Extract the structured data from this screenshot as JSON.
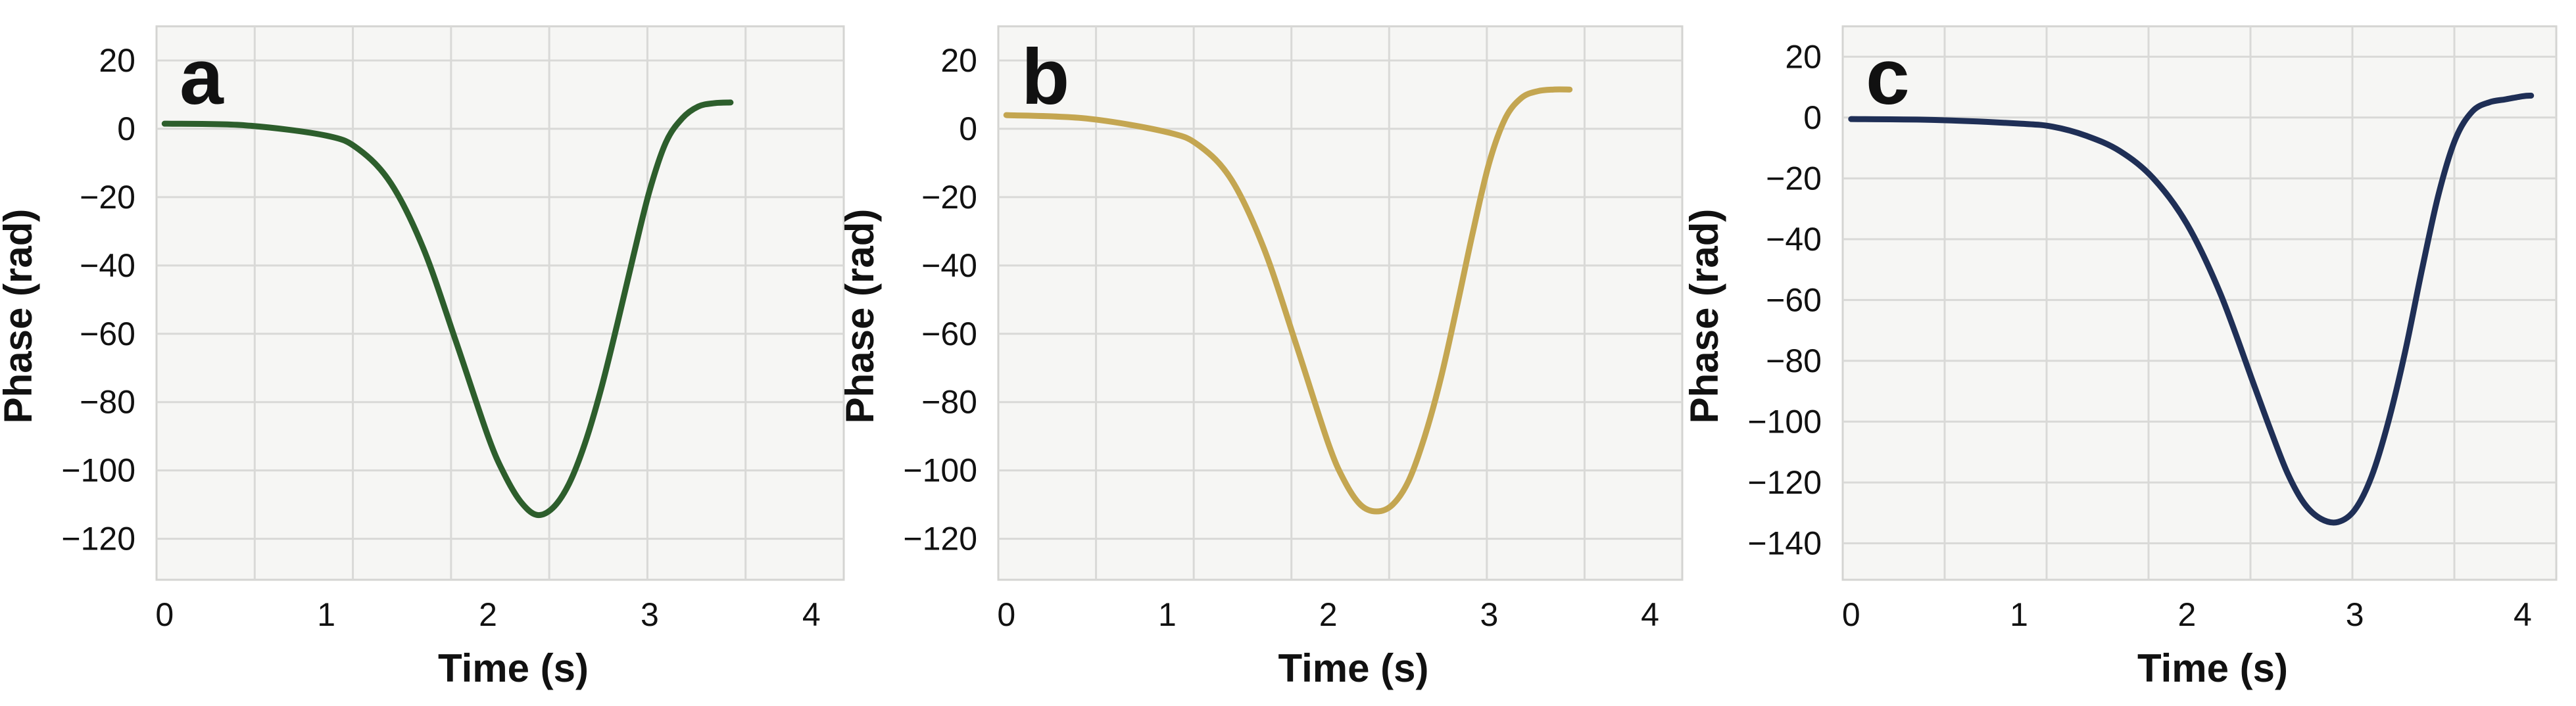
{
  "chart_data": [
    {
      "panel": "a",
      "type": "line",
      "xlabel": "Time (s)",
      "ylabel": "Phase (rad)",
      "xlim": [
        -0.05,
        4.2
      ],
      "ylim": [
        -132,
        30
      ],
      "xticks": [
        0,
        1,
        2,
        3,
        4
      ],
      "yticks": [
        20,
        0,
        -20,
        -40,
        -60,
        -80,
        -100,
        -120
      ],
      "grid": true,
      "series": [
        {
          "color": "#2d5e2c",
          "x": [
            0,
            0.5,
            1.0,
            1.2,
            1.4,
            1.6,
            1.8,
            2.0,
            2.1,
            2.2,
            2.3,
            2.4,
            2.5,
            2.6,
            2.7,
            2.8,
            2.9,
            3.0,
            3.1,
            3.2,
            3.3,
            3.4,
            3.5
          ],
          "y": [
            1.5,
            1.0,
            -2,
            -6,
            -16,
            -35,
            -62,
            -90,
            -101,
            -109,
            -113,
            -111,
            -104,
            -92,
            -76,
            -57,
            -37,
            -18,
            -4,
            3,
            6.5,
            7.5,
            7.7
          ]
        }
      ]
    },
    {
      "panel": "b",
      "type": "line",
      "xlabel": "Time (s)",
      "ylabel": "Phase (rad)",
      "xlim": [
        -0.05,
        4.2
      ],
      "ylim": [
        -132,
        30
      ],
      "xticks": [
        0,
        1,
        2,
        3,
        4
      ],
      "yticks": [
        20,
        0,
        -20,
        -40,
        -60,
        -80,
        -100,
        -120
      ],
      "grid": true,
      "series": [
        {
          "color": "#c4a651",
          "x": [
            0,
            0.5,
            1.0,
            1.2,
            1.4,
            1.6,
            1.8,
            2.0,
            2.1,
            2.2,
            2.3,
            2.4,
            2.5,
            2.6,
            2.7,
            2.8,
            2.9,
            3.0,
            3.1,
            3.2,
            3.3,
            3.4,
            3.5
          ],
          "y": [
            4,
            3,
            -1,
            -5,
            -15,
            -35,
            -63,
            -92,
            -103,
            -110,
            -112,
            -110,
            -103,
            -90,
            -73,
            -52,
            -30,
            -10,
            3,
            9,
            11,
            11.5,
            11.5
          ]
        }
      ]
    },
    {
      "panel": "c",
      "type": "line",
      "xlabel": "Time (s)",
      "ylabel": "Phase (rad)",
      "xlim": [
        -0.05,
        4.2
      ],
      "ylim": [
        -152,
        30
      ],
      "xticks": [
        0,
        1,
        2,
        3,
        4
      ],
      "yticks": [
        20,
        0,
        -20,
        -40,
        -60,
        -80,
        -100,
        -120,
        -140
      ],
      "grid": true,
      "series": [
        {
          "color": "#1f2f56",
          "x": [
            0,
            0.5,
            1.0,
            1.2,
            1.4,
            1.6,
            1.8,
            2.0,
            2.2,
            2.4,
            2.5,
            2.6,
            2.7,
            2.8,
            2.9,
            3.0,
            3.1,
            3.2,
            3.3,
            3.4,
            3.5,
            3.6,
            3.7,
            3.8,
            3.9,
            4.0,
            4.05
          ],
          "y": [
            -0.5,
            -0.8,
            -2,
            -3,
            -6,
            -11,
            -20,
            -35,
            -58,
            -88,
            -103,
            -117,
            -127,
            -132,
            -133,
            -129,
            -118,
            -100,
            -77,
            -50,
            -25,
            -7,
            2,
            5,
            6,
            7,
            7.2
          ]
        }
      ]
    }
  ]
}
